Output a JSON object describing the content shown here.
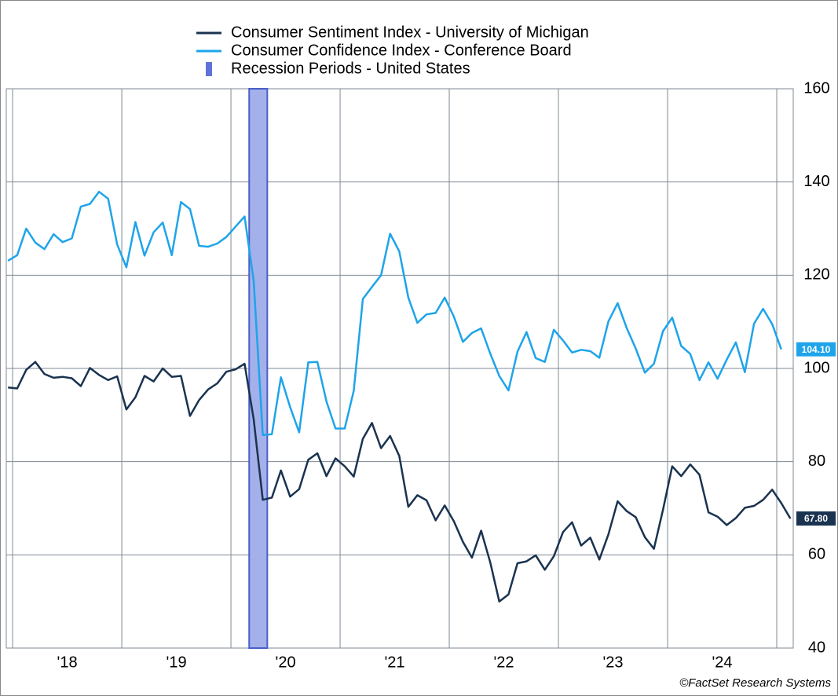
{
  "chart_data": {
    "type": "line",
    "credit": "©FactSet Research Systems",
    "x": [
      2017.958,
      2018.042,
      2018.125,
      2018.208,
      2018.292,
      2018.375,
      2018.458,
      2018.542,
      2018.625,
      2018.708,
      2018.792,
      2018.875,
      2018.958,
      2019.042,
      2019.125,
      2019.208,
      2019.292,
      2019.375,
      2019.458,
      2019.542,
      2019.625,
      2019.708,
      2019.792,
      2019.875,
      2019.958,
      2020.042,
      2020.125,
      2020.208,
      2020.292,
      2020.375,
      2020.458,
      2020.542,
      2020.625,
      2020.708,
      2020.792,
      2020.875,
      2020.958,
      2021.042,
      2021.125,
      2021.208,
      2021.292,
      2021.375,
      2021.458,
      2021.542,
      2021.625,
      2021.708,
      2021.792,
      2021.875,
      2021.958,
      2022.042,
      2022.125,
      2022.208,
      2022.292,
      2022.375,
      2022.458,
      2022.542,
      2022.625,
      2022.708,
      2022.792,
      2022.875,
      2022.958,
      2023.042,
      2023.125,
      2023.208,
      2023.292,
      2023.375,
      2023.458,
      2023.542,
      2023.625,
      2023.708,
      2023.792,
      2023.875,
      2023.958,
      2024.042,
      2024.125,
      2024.208,
      2024.292,
      2024.375,
      2024.458,
      2024.542,
      2024.625,
      2024.708,
      2024.792,
      2024.875,
      2024.958,
      2025.042,
      2025.125
    ],
    "series": [
      {
        "name": "Consumer Sentiment Index - University of Michigan",
        "color": "#1a3350",
        "end_label": "67.80",
        "values": [
          95.9,
          95.7,
          99.7,
          101.4,
          98.8,
          98.0,
          98.2,
          97.9,
          96.2,
          100.1,
          98.6,
          97.5,
          98.3,
          91.2,
          93.8,
          98.4,
          97.2,
          100.0,
          98.2,
          98.4,
          89.8,
          93.2,
          95.5,
          96.8,
          99.3,
          99.8,
          101.0,
          89.1,
          71.8,
          72.3,
          78.1,
          72.5,
          74.1,
          80.4,
          81.8,
          76.9,
          80.7,
          79.0,
          76.8,
          84.9,
          88.3,
          82.9,
          85.5,
          81.2,
          70.3,
          72.8,
          71.7,
          67.4,
          70.6,
          67.2,
          62.8,
          59.4,
          65.2,
          58.4,
          50.0,
          51.5,
          58.2,
          58.6,
          59.9,
          56.8,
          59.7,
          64.9,
          67.0,
          62.0,
          63.7,
          59.0,
          64.4,
          71.5,
          69.4,
          68.1,
          63.8,
          61.3,
          69.7,
          79.0,
          76.9,
          79.4,
          77.2,
          69.1,
          68.2,
          66.4,
          67.9,
          70.1,
          70.5,
          71.8,
          74.0,
          71.1,
          67.8
        ]
      },
      {
        "name": "Consumer Confidence Index - Conference Board",
        "color": "#1ea4ea",
        "end_label": "104.10",
        "values": [
          123.1,
          124.3,
          130.0,
          127.0,
          125.6,
          128.8,
          127.1,
          127.9,
          134.7,
          135.3,
          137.9,
          136.4,
          126.6,
          121.7,
          131.4,
          124.2,
          129.2,
          131.3,
          124.3,
          135.7,
          134.2,
          126.3,
          126.1,
          126.8,
          128.2,
          130.4,
          132.6,
          118.8,
          85.7,
          85.9,
          98.1,
          91.7,
          86.3,
          101.3,
          101.4,
          92.9,
          87.1,
          87.1,
          95.2,
          114.9,
          117.5,
          120.0,
          128.9,
          125.1,
          115.2,
          109.8,
          111.6,
          111.9,
          115.2,
          111.1,
          105.7,
          107.6,
          108.6,
          103.2,
          98.4,
          95.3,
          103.6,
          107.8,
          102.2,
          101.4,
          108.3,
          106.0,
          103.4,
          104.0,
          103.7,
          102.3,
          110.1,
          114.0,
          108.7,
          104.3,
          99.1,
          101.0,
          108.0,
          110.9,
          104.8,
          103.1,
          97.5,
          101.3,
          97.8,
          101.9,
          105.6,
          99.2,
          109.6,
          112.8,
          109.5,
          104.1,
          null
        ]
      }
    ],
    "recession": {
      "name": "Recession Periods - United States",
      "color": "#a3b0ea",
      "periods": [
        [
          2020.167,
          2020.333
        ]
      ]
    },
    "xlim": [
      2017.942,
      2025.151
    ],
    "xticks": [
      2018,
      2019,
      2020,
      2021,
      2022,
      2023,
      2024,
      2025
    ],
    "xlabels": [
      {
        "value": 2018.5,
        "label": "'18"
      },
      {
        "value": 2019.5,
        "label": "'19"
      },
      {
        "value": 2020.5,
        "label": "'20"
      },
      {
        "value": 2021.5,
        "label": "'21"
      },
      {
        "value": 2022.5,
        "label": "'22"
      },
      {
        "value": 2023.5,
        "label": "'23"
      },
      {
        "value": 2024.5,
        "label": "'24"
      }
    ],
    "ylim": [
      40,
      160
    ],
    "yticks": [
      40,
      60,
      80,
      100,
      120,
      140,
      160
    ],
    "grid": true
  }
}
